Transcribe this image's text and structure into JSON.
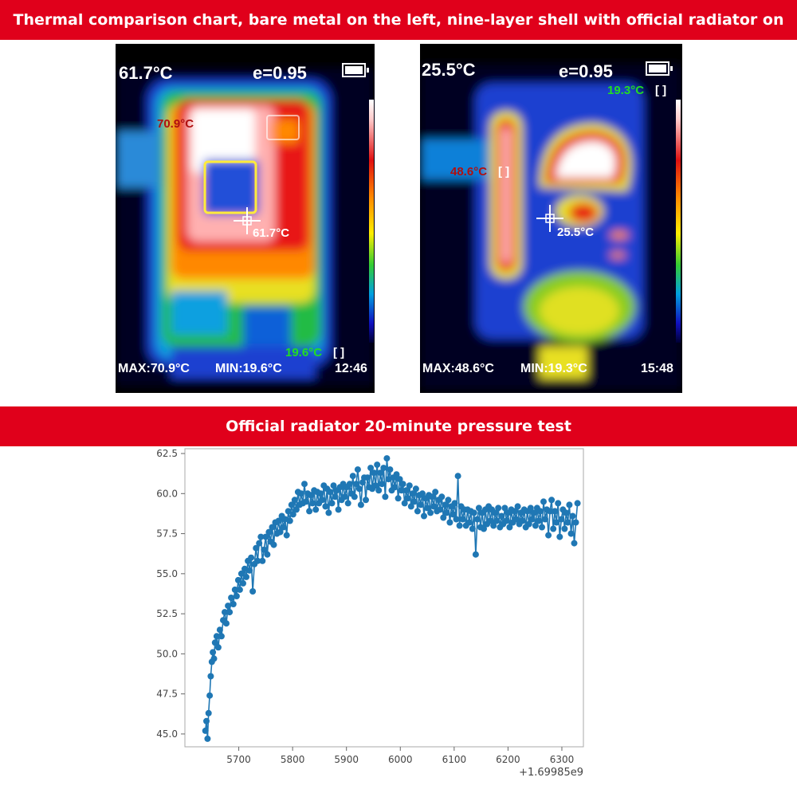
{
  "banner_top": "Thermal comparison chart, bare metal on the left, nine-layer shell with official radiator on the right",
  "banner_mid": "Official radiator 20-minute pressure test",
  "left_camera": {
    "center_temp": "61.7°C",
    "emissivity": "e=0.95",
    "hot_spot": "70.9°C",
    "center_spot": "61.7°C",
    "cold_spot": "19.6°C",
    "max": "MAX:70.9°C",
    "min": "MIN:19.6°C",
    "time": "12:46"
  },
  "right_camera": {
    "center_temp": "25.5°C",
    "emissivity": "e=0.95",
    "hot_spot": "48.6°C",
    "center_spot": "25.5°C",
    "cold_spot": "19.3°C",
    "max": "MAX:48.6°C",
    "min": "MIN:19.3°C",
    "time": "15:48"
  },
  "colors": {
    "banner": "#e0001b",
    "series": "#1f77b4",
    "hot_label": "#b01010",
    "cold_label": "#22dd22"
  },
  "chart_data": {
    "type": "line",
    "title": "",
    "xlabel": "",
    "ylabel": "",
    "x_offset_label": "+1.69985e9",
    "xlim": [
      5600,
      6340
    ],
    "ylim": [
      44.2,
      62.8
    ],
    "x_ticks": [
      5700,
      5800,
      5900,
      6000,
      6100,
      6200,
      6300
    ],
    "y_ticks": [
      45.0,
      47.5,
      50.0,
      52.5,
      55.0,
      57.5,
      60.0,
      62.5
    ],
    "x_tick_labels": [
      "5700",
      "5800",
      "5900",
      "6000",
      "6100",
      "6200",
      "6300"
    ],
    "y_tick_labels": [
      "45.0",
      "47.5",
      "50.0",
      "52.5",
      "55.0",
      "57.5",
      "60.0",
      "62.5"
    ],
    "grid": false,
    "marker": "circle",
    "series": [
      {
        "values": [
          [
            5638,
            45.2
          ],
          [
            5640,
            45.8
          ],
          [
            5642,
            44.7
          ],
          [
            5644,
            46.3
          ],
          [
            5646,
            47.4
          ],
          [
            5648,
            48.6
          ],
          [
            5650,
            49.5
          ],
          [
            5652,
            50.1
          ],
          [
            5654,
            49.7
          ],
          [
            5656,
            50.7
          ],
          [
            5659,
            51.1
          ],
          [
            5662,
            50.4
          ],
          [
            5665,
            51.5
          ],
          [
            5668,
            51.1
          ],
          [
            5671,
            52.1
          ],
          [
            5674,
            52.6
          ],
          [
            5677,
            51.9
          ],
          [
            5680,
            53.0
          ],
          [
            5683,
            52.6
          ],
          [
            5686,
            53.5
          ],
          [
            5690,
            53.1
          ],
          [
            5693,
            54.0
          ],
          [
            5696,
            53.6
          ],
          [
            5699,
            54.6
          ],
          [
            5702,
            54.0
          ],
          [
            5705,
            55.0
          ],
          [
            5708,
            54.4
          ],
          [
            5711,
            55.3
          ],
          [
            5714,
            54.8
          ],
          [
            5717,
            55.8
          ],
          [
            5720,
            55.2
          ],
          [
            5723,
            56.0
          ],
          [
            5726,
            53.9
          ],
          [
            5729,
            55.6
          ],
          [
            5732,
            56.6
          ],
          [
            5735,
            55.8
          ],
          [
            5738,
            56.9
          ],
          [
            5741,
            57.3
          ],
          [
            5744,
            55.8
          ],
          [
            5747,
            56.5
          ],
          [
            5750,
            57.3
          ],
          [
            5753,
            56.2
          ],
          [
            5756,
            57.6
          ],
          [
            5759,
            57.0
          ],
          [
            5762,
            57.9
          ],
          [
            5765,
            56.8
          ],
          [
            5768,
            58.2
          ],
          [
            5771,
            57.5
          ],
          [
            5774,
            58.3
          ],
          [
            5777,
            57.6
          ],
          [
            5780,
            58.6
          ],
          [
            5783,
            57.9
          ],
          [
            5786,
            58.4
          ],
          [
            5789,
            57.4
          ],
          [
            5792,
            58.9
          ],
          [
            5795,
            58.3
          ],
          [
            5798,
            59.3
          ],
          [
            5801,
            58.7
          ],
          [
            5804,
            59.6
          ],
          [
            5807,
            59.0
          ],
          [
            5810,
            60.1
          ],
          [
            5813,
            59.3
          ],
          [
            5816,
            60.0
          ],
          [
            5819,
            59.4
          ],
          [
            5822,
            60.6
          ],
          [
            5825,
            59.5
          ],
          [
            5828,
            60.0
          ],
          [
            5831,
            58.9
          ],
          [
            5834,
            59.9
          ],
          [
            5837,
            59.4
          ],
          [
            5840,
            60.2
          ],
          [
            5843,
            59.0
          ],
          [
            5846,
            60.1
          ],
          [
            5849,
            59.4
          ],
          [
            5852,
            60.0
          ],
          [
            5855,
            59.6
          ],
          [
            5858,
            60.5
          ],
          [
            5861,
            59.2
          ],
          [
            5864,
            60.3
          ],
          [
            5867,
            58.8
          ],
          [
            5870,
            60.1
          ],
          [
            5873,
            59.4
          ],
          [
            5876,
            60.5
          ],
          [
            5879,
            59.8
          ],
          [
            5882,
            60.2
          ],
          [
            5885,
            59.0
          ],
          [
            5888,
            60.4
          ],
          [
            5891,
            59.6
          ],
          [
            5894,
            60.6
          ],
          [
            5897,
            59.8
          ],
          [
            5900,
            60.4
          ],
          [
            5903,
            59.4
          ],
          [
            5906,
            60.6
          ],
          [
            5909,
            60.0
          ],
          [
            5912,
            61.1
          ],
          [
            5915,
            59.8
          ],
          [
            5918,
            60.6
          ],
          [
            5921,
            61.5
          ],
          [
            5924,
            60.3
          ],
          [
            5927,
            59.3
          ],
          [
            5930,
            60.7
          ],
          [
            5933,
            61.0
          ],
          [
            5936,
            59.6
          ],
          [
            5939,
            61.0
          ],
          [
            5942,
            60.4
          ],
          [
            5945,
            61.6
          ],
          [
            5948,
            60.3
          ],
          [
            5951,
            61.3
          ],
          [
            5954,
            60.5
          ],
          [
            5957,
            61.8
          ],
          [
            5960,
            60.2
          ],
          [
            5963,
            61.3
          ],
          [
            5966,
            60.6
          ],
          [
            5969,
            61.6
          ],
          [
            5972,
            59.8
          ],
          [
            5975,
            62.2
          ],
          [
            5978,
            60.9
          ],
          [
            5981,
            61.5
          ],
          [
            5984,
            60.2
          ],
          [
            5987,
            61.0
          ],
          [
            5990,
            60.4
          ],
          [
            5993,
            61.2
          ],
          [
            5996,
            59.7
          ],
          [
            5999,
            60.9
          ],
          [
            6002,
            60.2
          ],
          [
            6005,
            60.6
          ],
          [
            6008,
            59.4
          ],
          [
            6011,
            60.2
          ],
          [
            6014,
            59.7
          ],
          [
            6017,
            60.5
          ],
          [
            6020,
            59.2
          ],
          [
            6023,
            60.0
          ],
          [
            6026,
            59.5
          ],
          [
            6029,
            60.3
          ],
          [
            6032,
            58.9
          ],
          [
            6035,
            59.9
          ],
          [
            6038,
            59.3
          ],
          [
            6041,
            60.0
          ],
          [
            6044,
            58.6
          ],
          [
            6047,
            59.7
          ],
          [
            6050,
            59.1
          ],
          [
            6053,
            59.9
          ],
          [
            6056,
            58.8
          ],
          [
            6059,
            59.8
          ],
          [
            6062,
            59.2
          ],
          [
            6065,
            60.1
          ],
          [
            6068,
            58.9
          ],
          [
            6071,
            59.6
          ],
          [
            6074,
            59.0
          ],
          [
            6077,
            59.8
          ],
          [
            6080,
            58.5
          ],
          [
            6083,
            59.3
          ],
          [
            6086,
            58.8
          ],
          [
            6089,
            59.6
          ],
          [
            6092,
            58.2
          ],
          [
            6095,
            59.2
          ],
          [
            6098,
            58.7
          ],
          [
            6101,
            59.4
          ],
          [
            6104,
            58.4
          ],
          [
            6107,
            61.1
          ],
          [
            6110,
            58.0
          ],
          [
            6113,
            59.2
          ],
          [
            6116,
            58.4
          ],
          [
            6119,
            59.0
          ],
          [
            6122,
            58.0
          ],
          [
            6125,
            59.0
          ],
          [
            6128,
            58.2
          ],
          [
            6131,
            58.9
          ],
          [
            6134,
            57.8
          ],
          [
            6137,
            58.8
          ],
          [
            6140,
            56.2
          ],
          [
            6143,
            58.4
          ],
          [
            6146,
            59.1
          ],
          [
            6149,
            57.9
          ],
          [
            6152,
            58.8
          ],
          [
            6155,
            57.8
          ],
          [
            6158,
            59.0
          ],
          [
            6161,
            58.1
          ],
          [
            6164,
            59.2
          ],
          [
            6167,
            58.3
          ],
          [
            6170,
            59.0
          ],
          [
            6173,
            58.0
          ],
          [
            6176,
            58.8
          ],
          [
            6179,
            58.3
          ],
          [
            6182,
            59.1
          ],
          [
            6185,
            57.9
          ],
          [
            6188,
            58.6
          ],
          [
            6191,
            58.1
          ],
          [
            6194,
            59.1
          ],
          [
            6197,
            58.3
          ],
          [
            6200,
            58.8
          ],
          [
            6203,
            57.9
          ],
          [
            6206,
            59.0
          ],
          [
            6209,
            58.2
          ],
          [
            6212,
            58.9
          ],
          [
            6215,
            58.4
          ],
          [
            6218,
            59.2
          ],
          [
            6221,
            58.1
          ],
          [
            6224,
            58.8
          ],
          [
            6227,
            58.3
          ],
          [
            6230,
            59.0
          ],
          [
            6233,
            57.9
          ],
          [
            6236,
            58.9
          ],
          [
            6239,
            58.1
          ],
          [
            6242,
            59.1
          ],
          [
            6245,
            58.4
          ],
          [
            6248,
            58.8
          ],
          [
            6251,
            58.0
          ],
          [
            6254,
            59.1
          ],
          [
            6257,
            58.3
          ],
          [
            6260,
            58.9
          ],
          [
            6263,
            57.9
          ],
          [
            6266,
            59.5
          ],
          [
            6269,
            58.4
          ],
          [
            6272,
            59.0
          ],
          [
            6275,
            57.4
          ],
          [
            6278,
            58.9
          ],
          [
            6281,
            59.6
          ],
          [
            6284,
            57.8
          ],
          [
            6287,
            58.9
          ],
          [
            6290,
            58.2
          ],
          [
            6293,
            59.4
          ],
          [
            6296,
            57.3
          ],
          [
            6299,
            58.4
          ],
          [
            6302,
            59.0
          ],
          [
            6305,
            57.8
          ],
          [
            6308,
            58.8
          ],
          [
            6311,
            58.2
          ],
          [
            6314,
            59.3
          ],
          [
            6317,
            57.5
          ],
          [
            6320,
            58.6
          ],
          [
            6323,
            56.9
          ],
          [
            6326,
            58.2
          ],
          [
            6329,
            59.4
          ]
        ]
      }
    ]
  }
}
